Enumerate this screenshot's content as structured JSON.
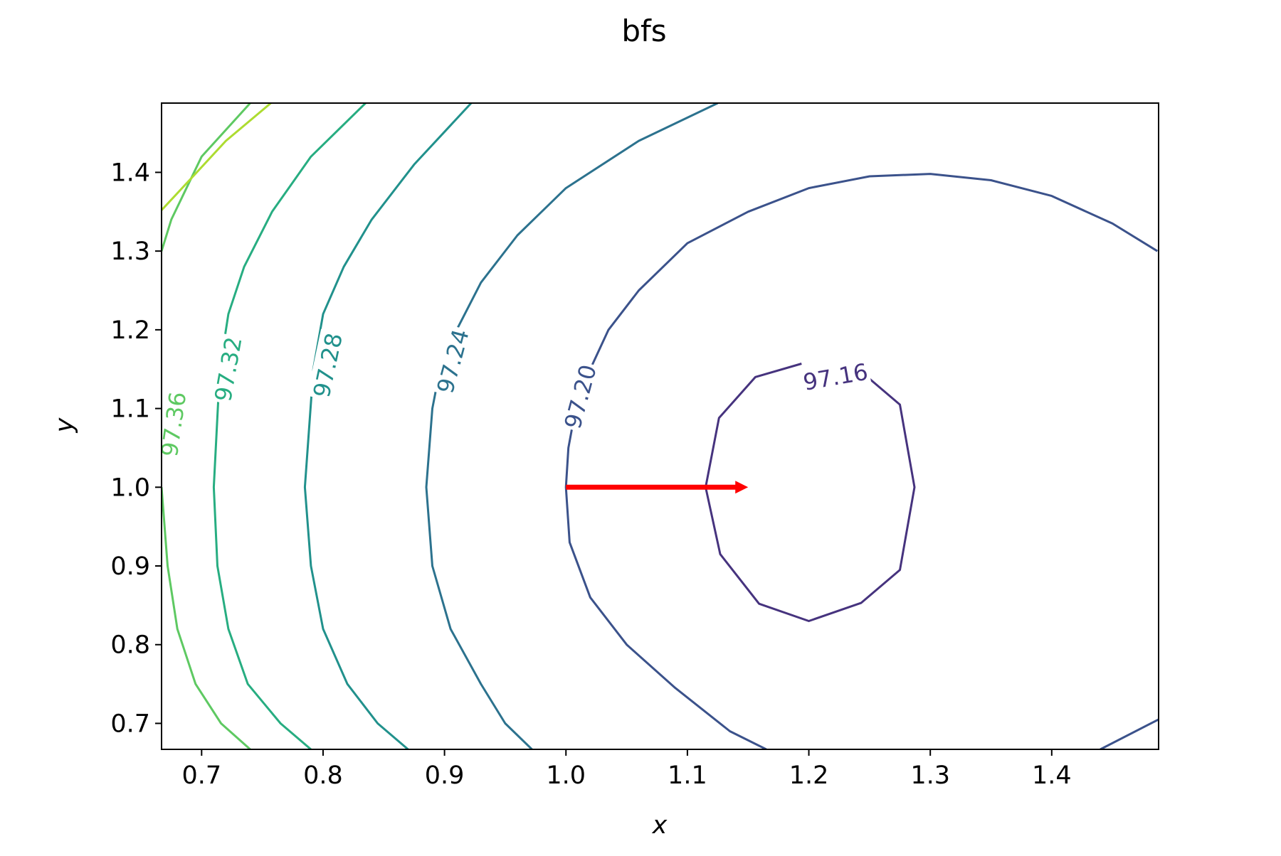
{
  "chart_data": {
    "type": "contour",
    "title": "bfs",
    "xlabel": "x",
    "ylabel": "y",
    "xlim": [
      0.667,
      1.488
    ],
    "ylim": [
      0.667,
      1.488
    ],
    "x_ticks": [
      0.7,
      0.8,
      0.9,
      1.0,
      1.1,
      1.2,
      1.3,
      1.4
    ],
    "x_tick_labels": [
      "0.7",
      "0.8",
      "0.9",
      "1.0",
      "1.1",
      "1.2",
      "1.3",
      "1.4"
    ],
    "y_ticks": [
      0.7,
      0.8,
      0.9,
      1.0,
      1.1,
      1.2,
      1.3,
      1.4
    ],
    "y_tick_labels": [
      "0.7",
      "0.8",
      "0.9",
      "1.0",
      "1.1",
      "1.2",
      "1.3",
      "1.4"
    ],
    "colormap": "viridis",
    "levels": [
      {
        "level": 97.16,
        "label": "97.16",
        "color": "#46337e",
        "points": [
          [
            1.243,
            1.147
          ],
          [
            1.275,
            1.105
          ],
          [
            1.287,
            1.0
          ],
          [
            1.275,
            0.895
          ],
          [
            1.243,
            0.853
          ],
          [
            1.2,
            0.83
          ],
          [
            1.159,
            0.852
          ],
          [
            1.127,
            0.915
          ],
          [
            1.115,
            1.0
          ],
          [
            1.126,
            1.088
          ],
          [
            1.156,
            1.14
          ],
          [
            1.194,
            1.157
          ]
        ],
        "label_at": [
          1.222,
          1.14
        ],
        "label_angle": -10
      },
      {
        "level": 97.2,
        "label": "97.20",
        "color": "#3b528b",
        "points": [
          [
            1.487,
            1.3
          ],
          [
            1.45,
            1.335
          ],
          [
            1.4,
            1.37
          ],
          [
            1.35,
            1.39
          ],
          [
            1.3,
            1.398
          ],
          [
            1.25,
            1.395
          ],
          [
            1.2,
            1.38
          ],
          [
            1.15,
            1.35
          ],
          [
            1.1,
            1.31
          ],
          [
            1.06,
            1.25
          ],
          [
            1.035,
            1.2
          ],
          [
            1.02,
            1.15
          ],
          [
            1.008,
            1.1
          ],
          [
            1.002,
            1.05
          ],
          [
            1.0,
            1.0
          ],
          [
            1.003,
            0.93
          ],
          [
            1.02,
            0.86
          ],
          [
            1.05,
            0.8
          ],
          [
            1.09,
            0.745
          ],
          [
            1.135,
            0.69
          ],
          [
            1.165,
            0.667
          ]
        ],
        "extra_segments": [
          [
            [
              1.44,
              0.667
            ],
            [
              1.488,
              0.705
            ]
          ]
        ],
        "label_at": [
          1.012,
          1.115
        ],
        "label_angle": -75
      },
      {
        "level": 97.24,
        "label": "97.24",
        "color": "#2c728e",
        "points": [
          [
            1.125,
            1.488
          ],
          [
            1.06,
            1.44
          ],
          [
            1.0,
            1.38
          ],
          [
            0.96,
            1.32
          ],
          [
            0.93,
            1.26
          ],
          [
            0.91,
            1.2
          ],
          [
            0.895,
            1.14
          ],
          [
            0.89,
            1.1
          ],
          [
            0.885,
            1.0
          ],
          [
            0.89,
            0.9
          ],
          [
            0.905,
            0.82
          ],
          [
            0.93,
            0.75
          ],
          [
            0.95,
            0.7
          ],
          [
            0.972,
            0.667
          ]
        ],
        "label_at": [
          0.907,
          1.16
        ],
        "label_angle": -75
      },
      {
        "level": 97.28,
        "label": "97.28",
        "color": "#21918c",
        "points": [
          [
            0.922,
            1.488
          ],
          [
            0.875,
            1.41
          ],
          [
            0.84,
            1.34
          ],
          [
            0.817,
            1.28
          ],
          [
            0.8,
            1.22
          ],
          [
            0.792,
            1.15
          ],
          [
            0.785,
            1.0
          ],
          [
            0.79,
            0.9
          ],
          [
            0.8,
            0.82
          ],
          [
            0.82,
            0.75
          ],
          [
            0.845,
            0.7
          ],
          [
            0.87,
            0.667
          ]
        ],
        "label_at": [
          0.804,
          1.155
        ],
        "label_angle": -78
      },
      {
        "level": 97.32,
        "label": "97.32",
        "color": "#27ad81",
        "points": [
          [
            0.835,
            1.488
          ],
          [
            0.79,
            1.42
          ],
          [
            0.758,
            1.35
          ],
          [
            0.735,
            1.28
          ],
          [
            0.722,
            1.22
          ],
          [
            0.715,
            1.15
          ],
          [
            0.71,
            1.0
          ],
          [
            0.713,
            0.9
          ],
          [
            0.722,
            0.82
          ],
          [
            0.738,
            0.75
          ],
          [
            0.765,
            0.7
          ],
          [
            0.79,
            0.667
          ]
        ],
        "label_at": [
          0.722,
          1.15
        ],
        "label_angle": -80
      },
      {
        "level": 97.36,
        "label": "97.36",
        "color": "#5ec962",
        "points": [
          [
            0.74,
            1.488
          ],
          [
            0.7,
            1.42
          ],
          [
            0.675,
            1.34
          ],
          [
            0.667,
            1.3
          ]
        ],
        "extra_segments": [
          [
            [
              0.667,
              1.0
            ],
            [
              0.672,
              0.9
            ],
            [
              0.68,
              0.82
            ],
            [
              0.695,
              0.75
            ],
            [
              0.716,
              0.7
            ],
            [
              0.74,
              0.667
            ]
          ]
        ],
        "label_at": [
          0.677,
          1.08
        ],
        "label_angle": -82
      },
      {
        "level": 97.4,
        "label": "",
        "color": "#addc30",
        "points": [
          [
            0.757,
            1.488
          ],
          [
            0.72,
            1.44
          ],
          [
            0.69,
            1.39
          ],
          [
            0.667,
            1.352
          ]
        ]
      }
    ],
    "arrow": {
      "color": "#ff0000",
      "from": [
        1.0,
        1.0
      ],
      "to": [
        1.15,
        1.0
      ]
    }
  }
}
